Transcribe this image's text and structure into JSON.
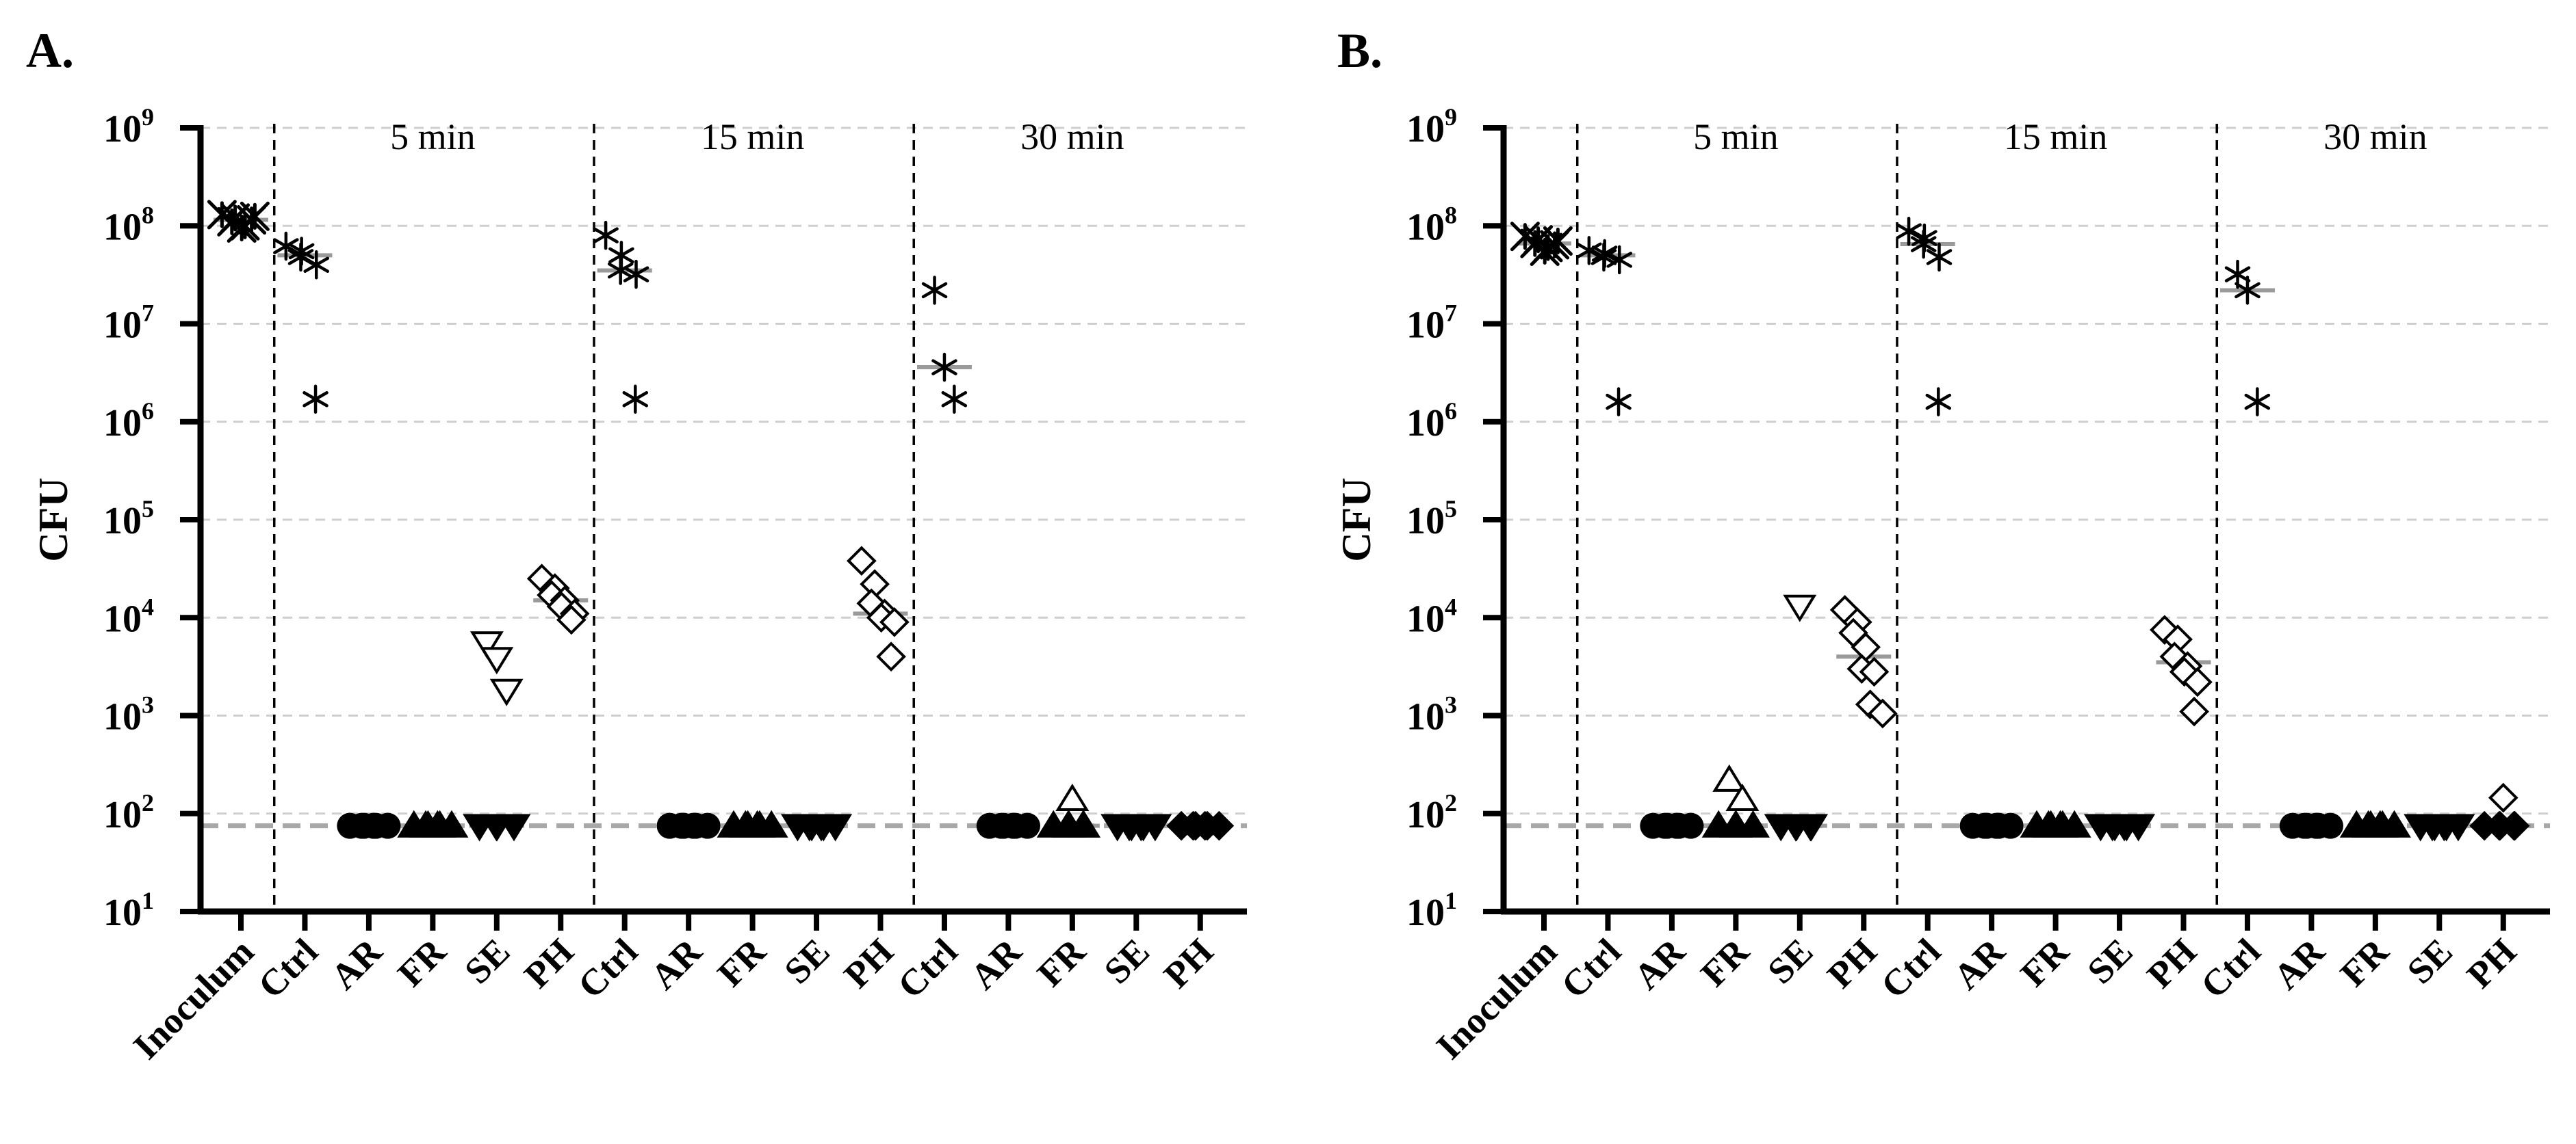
{
  "chart_data": [
    {
      "type": "scatter",
      "panel": "A.",
      "ylabel": "CFU",
      "yscale": "log",
      "ylim": [
        10,
        1000000000
      ],
      "ytick_labels": [
        {
          "base": "10",
          "exp": "1",
          "value": 10
        },
        {
          "base": "10",
          "exp": "2",
          "value": 100
        },
        {
          "base": "10",
          "exp": "3",
          "value": 1000
        },
        {
          "base": "10",
          "exp": "4",
          "value": 10000
        },
        {
          "base": "10",
          "exp": "5",
          "value": 100000
        },
        {
          "base": "10",
          "exp": "6",
          "value": 1000000
        },
        {
          "base": "10",
          "exp": "7",
          "value": 10000000
        },
        {
          "base": "10",
          "exp": "8",
          "value": 100000000
        },
        {
          "base": "10",
          "exp": "9",
          "value": 1000000000
        }
      ],
      "categories": [
        "Inoculum",
        "Ctrl",
        "AR",
        "FR",
        "SE",
        "PH",
        "Ctrl",
        "AR",
        "FR",
        "SE",
        "PH",
        "Ctrl",
        "AR",
        "FR",
        "SE",
        "PH"
      ],
      "group_labels": [
        {
          "label": "5 min",
          "from": 1,
          "to": 5
        },
        {
          "label": "15 min",
          "from": 6,
          "to": 10
        },
        {
          "label": "30 min",
          "from": 11,
          "to": 15
        }
      ],
      "detection_limit": 75,
      "gridlines": "dashed at each decade",
      "series": [
        {
          "category_index": 0,
          "marker": "x-star",
          "values": [
            130000000,
            120000000,
            110000000,
            100000000,
            95000000,
            125000000,
            115000000
          ],
          "median": 115000000
        },
        {
          "category_index": 1,
          "marker": "asterisk",
          "values": [
            62000000,
            55000000,
            48000000,
            40000000,
            1700000
          ],
          "median": 50000000
        },
        {
          "category_index": 2,
          "marker": "circle-filled",
          "values": [
            75,
            75,
            75,
            75,
            75,
            75
          ],
          "median": 75
        },
        {
          "category_index": 3,
          "marker": "triangle-up-filled",
          "values": [
            75,
            75,
            75,
            75,
            75,
            75
          ],
          "median": 75
        },
        {
          "category_index": 4,
          "marker": "triangle-down-filled",
          "values": [
            75,
            75,
            75,
            75
          ],
          "median": 75
        },
        {
          "category_index": 4,
          "marker": "triangle-down-open",
          "values": [
            5500,
            3800,
            1800
          ],
          "median": null
        },
        {
          "category_index": 5,
          "marker": "diamond-open",
          "values": [
            25000,
            20000,
            17000,
            15000,
            13000,
            11000,
            9500
          ],
          "median": 15000
        },
        {
          "category_index": 6,
          "marker": "asterisk",
          "values": [
            80000000,
            50000000,
            35000000,
            32000000,
            1700000
          ],
          "median": 35000000
        },
        {
          "category_index": 7,
          "marker": "circle-filled",
          "values": [
            75,
            75,
            75,
            75,
            75,
            75
          ],
          "median": 75
        },
        {
          "category_index": 8,
          "marker": "triangle-up-filled",
          "values": [
            75,
            75,
            75,
            75,
            75,
            75
          ],
          "median": 75
        },
        {
          "category_index": 9,
          "marker": "triangle-down-filled",
          "values": [
            75,
            75,
            75,
            75,
            75,
            75
          ],
          "median": 75
        },
        {
          "category_index": 10,
          "marker": "diamond-open",
          "values": [
            38000,
            22000,
            14000,
            11000,
            10000,
            9000,
            4000
          ],
          "median": 11000
        },
        {
          "category_index": 11,
          "marker": "asterisk",
          "values": [
            22000000,
            3600000,
            1700000
          ],
          "median": 3600000
        },
        {
          "category_index": 12,
          "marker": "circle-filled",
          "values": [
            75,
            75,
            75,
            75,
            75,
            75
          ],
          "median": 75
        },
        {
          "category_index": 13,
          "marker": "triangle-up-filled",
          "values": [
            75,
            75,
            75,
            75,
            75
          ],
          "median": 75
        },
        {
          "category_index": 13,
          "marker": "triangle-up-open",
          "values": [
            140
          ],
          "median": null
        },
        {
          "category_index": 14,
          "marker": "triangle-down-filled",
          "values": [
            75,
            75,
            75,
            75,
            75,
            75
          ],
          "median": 75
        },
        {
          "category_index": 15,
          "marker": "diamond-filled",
          "values": [
            75,
            75,
            75,
            75,
            75,
            75
          ],
          "median": 75
        }
      ]
    },
    {
      "type": "scatter",
      "panel": "B.",
      "ylabel": "CFU",
      "yscale": "log",
      "ylim": [
        10,
        1000000000
      ],
      "ytick_labels": [
        {
          "base": "10",
          "exp": "1",
          "value": 10
        },
        {
          "base": "10",
          "exp": "2",
          "value": 100
        },
        {
          "base": "10",
          "exp": "3",
          "value": 1000
        },
        {
          "base": "10",
          "exp": "4",
          "value": 10000
        },
        {
          "base": "10",
          "exp": "5",
          "value": 100000
        },
        {
          "base": "10",
          "exp": "6",
          "value": 1000000
        },
        {
          "base": "10",
          "exp": "7",
          "value": 10000000
        },
        {
          "base": "10",
          "exp": "8",
          "value": 100000000
        },
        {
          "base": "10",
          "exp": "9",
          "value": 1000000000
        }
      ],
      "categories": [
        "Inoculum",
        "Ctrl",
        "AR",
        "FR",
        "SE",
        "PH",
        "Ctrl",
        "AR",
        "FR",
        "SE",
        "PH",
        "Ctrl",
        "AR",
        "FR",
        "SE",
        "PH"
      ],
      "group_labels": [
        {
          "label": "5 min",
          "from": 1,
          "to": 5
        },
        {
          "label": "15 min",
          "from": 6,
          "to": 10
        },
        {
          "label": "30 min",
          "from": 11,
          "to": 15
        }
      ],
      "detection_limit": 75,
      "gridlines": "dashed at each decade",
      "series": [
        {
          "category_index": 0,
          "marker": "x-star",
          "values": [
            78000000,
            72000000,
            66000000,
            60000000,
            55000000,
            70000000,
            64000000
          ],
          "median": 66000000
        },
        {
          "category_index": 1,
          "marker": "asterisk",
          "values": [
            56000000,
            52000000,
            48000000,
            45000000,
            1600000
          ],
          "median": 50000000
        },
        {
          "category_index": 2,
          "marker": "circle-filled",
          "values": [
            75,
            75,
            75,
            75,
            75,
            75
          ],
          "median": 75
        },
        {
          "category_index": 3,
          "marker": "triangle-up-filled",
          "values": [
            75,
            75,
            75,
            75
          ],
          "median": 75
        },
        {
          "category_index": 3,
          "marker": "triangle-up-open",
          "values": [
            220,
            140
          ],
          "median": null
        },
        {
          "category_index": 4,
          "marker": "triangle-down-filled",
          "values": [
            75,
            75,
            75,
            75,
            75
          ],
          "median": 75
        },
        {
          "category_index": 4,
          "marker": "triangle-down-open",
          "values": [
            13000
          ],
          "median": null
        },
        {
          "category_index": 5,
          "marker": "diamond-open",
          "values": [
            12000,
            9000,
            7000,
            5000,
            3000,
            2800,
            1300,
            1050
          ],
          "median": 4000
        },
        {
          "category_index": 6,
          "marker": "asterisk",
          "values": [
            88000000,
            75000000,
            65000000,
            48000000,
            1600000
          ],
          "median": 65000000
        },
        {
          "category_index": 7,
          "marker": "circle-filled",
          "values": [
            75,
            75,
            75,
            75,
            75,
            75
          ],
          "median": 75
        },
        {
          "category_index": 8,
          "marker": "triangle-up-filled",
          "values": [
            75,
            75,
            75,
            75,
            75,
            75
          ],
          "median": 75
        },
        {
          "category_index": 9,
          "marker": "triangle-down-filled",
          "values": [
            75,
            75,
            75,
            75,
            75,
            75
          ],
          "median": 75
        },
        {
          "category_index": 10,
          "marker": "diamond-open",
          "values": [
            7500,
            6000,
            4000,
            3200,
            2800,
            2200,
            1100
          ],
          "median": 3500
        },
        {
          "category_index": 11,
          "marker": "asterisk",
          "values": [
            32000000,
            22000000,
            1600000
          ],
          "median": 22000000
        },
        {
          "category_index": 12,
          "marker": "circle-filled",
          "values": [
            75,
            75,
            75,
            75,
            75,
            75
          ],
          "median": 75
        },
        {
          "category_index": 13,
          "marker": "triangle-up-filled",
          "values": [
            75,
            75,
            75,
            75,
            75,
            75
          ],
          "median": 75
        },
        {
          "category_index": 14,
          "marker": "triangle-down-filled",
          "values": [
            75,
            75,
            75,
            75,
            75,
            75
          ],
          "median": 75
        },
        {
          "category_index": 15,
          "marker": "diamond-filled",
          "values": [
            75,
            75,
            75,
            75,
            75
          ],
          "median": 75
        },
        {
          "category_index": 15,
          "marker": "diamond-open",
          "values": [
            145
          ],
          "median": null
        }
      ]
    }
  ]
}
